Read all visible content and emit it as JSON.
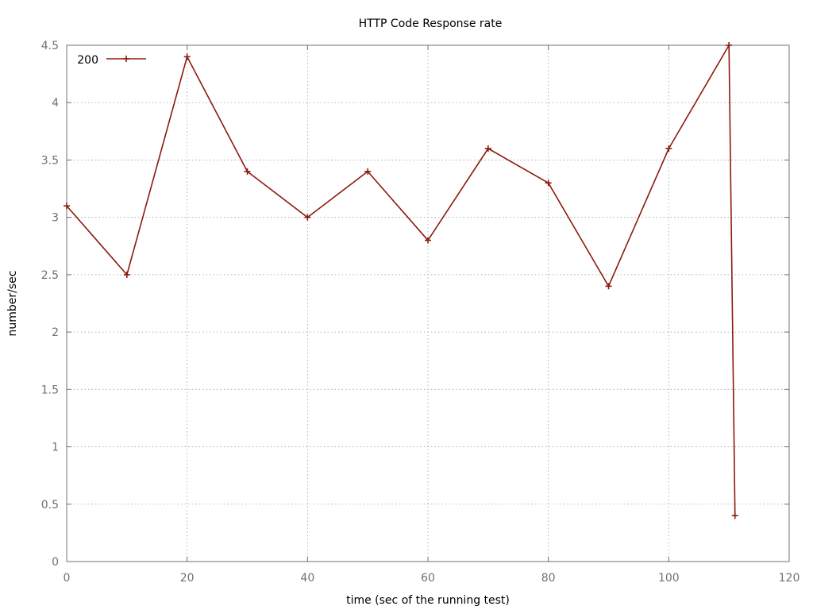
{
  "chart_data": {
    "type": "line",
    "title": "HTTP Code Response rate",
    "xlabel": "time (sec of the running test)",
    "ylabel": "number/sec",
    "xlim": [
      0,
      120
    ],
    "ylim": [
      0,
      4.5
    ],
    "xticks": [
      0,
      20,
      40,
      60,
      80,
      100,
      120
    ],
    "yticks": [
      0,
      0.5,
      1,
      1.5,
      2,
      2.5,
      3,
      3.5,
      4,
      4.5
    ],
    "grid": true,
    "legend_position": "top-left",
    "series": [
      {
        "name": "200",
        "color": "#8b1a0e",
        "marker": "plus",
        "points": [
          {
            "x": 0,
            "y": 3.1
          },
          {
            "x": 10,
            "y": 2.5
          },
          {
            "x": 20,
            "y": 4.4
          },
          {
            "x": 30,
            "y": 3.4
          },
          {
            "x": 40,
            "y": 3.0
          },
          {
            "x": 50,
            "y": 3.4
          },
          {
            "x": 60,
            "y": 2.8
          },
          {
            "x": 70,
            "y": 3.6
          },
          {
            "x": 80,
            "y": 3.3
          },
          {
            "x": 90,
            "y": 2.4
          },
          {
            "x": 100,
            "y": 3.6
          },
          {
            "x": 110,
            "y": 4.5
          },
          {
            "x": 111,
            "y": 0.4
          }
        ]
      }
    ]
  }
}
